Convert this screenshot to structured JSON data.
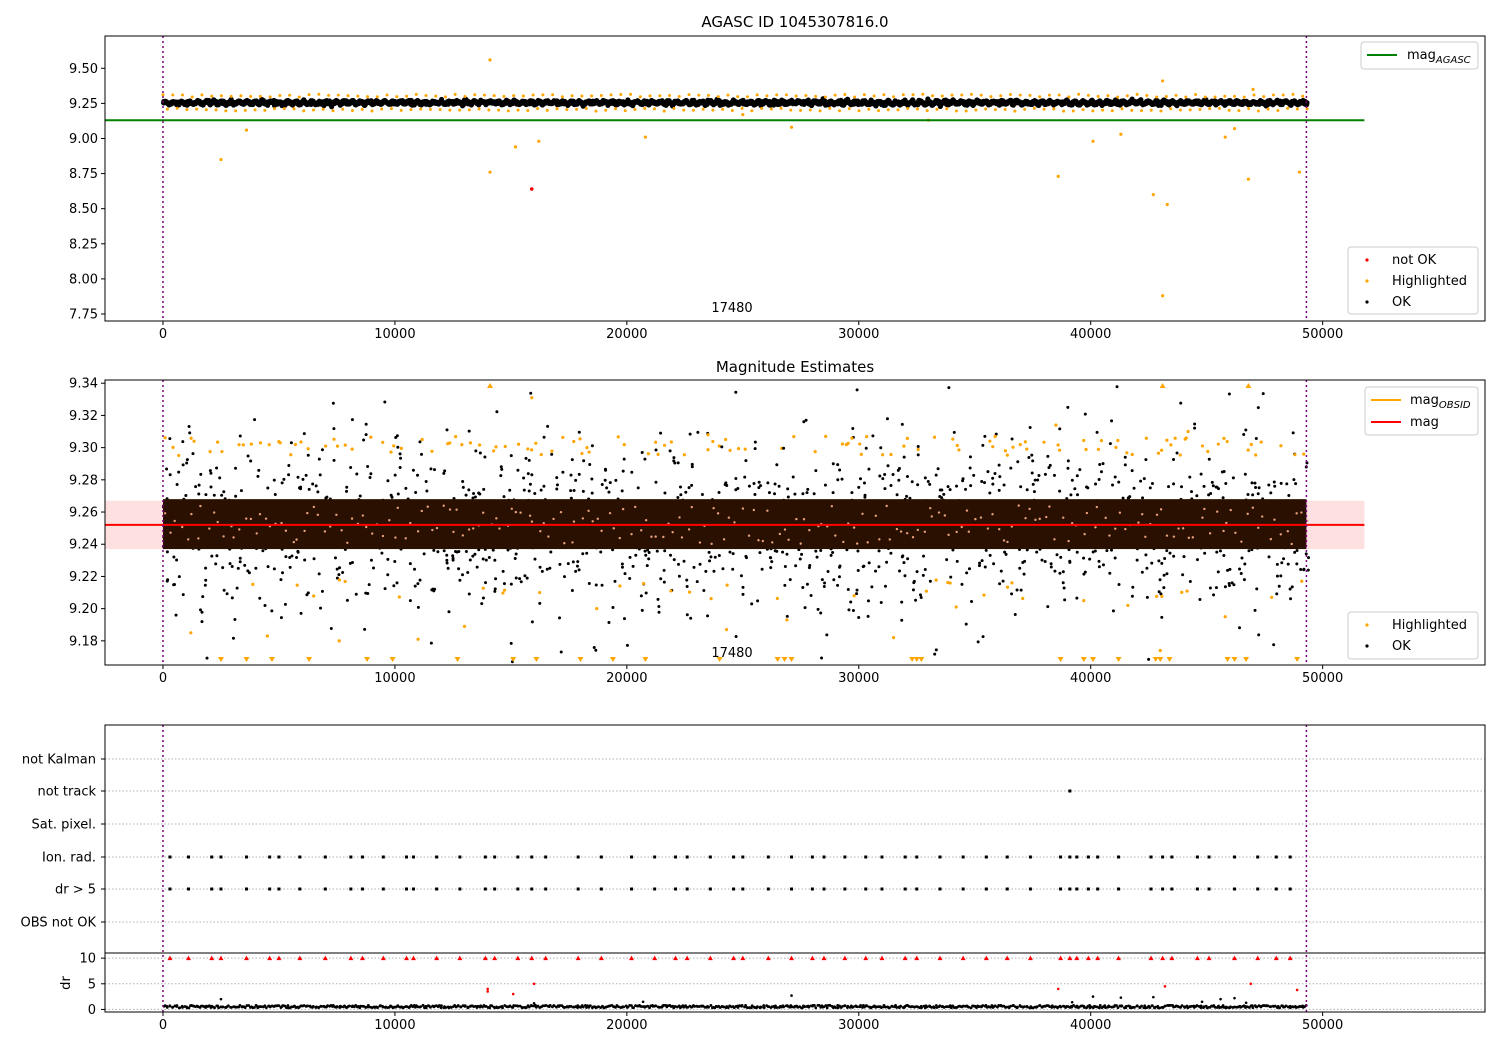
{
  "chart_data": [
    {
      "type": "scatter",
      "title": "AGASC ID 1045307816.0",
      "xlim": [
        -2500,
        57000
      ],
      "ylim": [
        7.7,
        9.73
      ],
      "x_ticks": [
        0,
        10000,
        20000,
        30000,
        40000,
        50000
      ],
      "y_ticks": [
        7.75,
        8.0,
        8.25,
        8.5,
        8.75,
        9.0,
        9.25,
        9.5
      ],
      "y_tick_labels": [
        "7.75",
        "8.00",
        "8.25",
        "8.50",
        "8.75",
        "9.00",
        "9.25",
        "9.50"
      ],
      "annotation": {
        "text": "17480",
        "x": 24500
      },
      "vlines": [
        0,
        49300
      ],
      "mag_agasc": 9.13,
      "mag_agasc_span": [
        -2500,
        51800
      ],
      "ok_band": {
        "center": 9.255,
        "amplitude": 0.014,
        "x_range": [
          0,
          49300
        ]
      },
      "highlighted_points": [
        [
          2500,
          8.85
        ],
        [
          3600,
          9.06
        ],
        [
          14100,
          9.56
        ],
        [
          14100,
          8.76
        ],
        [
          15200,
          8.94
        ],
        [
          16200,
          8.98
        ],
        [
          20800,
          9.01
        ],
        [
          27100,
          9.08
        ],
        [
          38600,
          8.73
        ],
        [
          40100,
          8.98
        ],
        [
          41300,
          9.03
        ],
        [
          42700,
          8.6
        ],
        [
          43100,
          9.41
        ],
        [
          43300,
          8.53
        ],
        [
          43100,
          7.88
        ],
        [
          45800,
          9.01
        ],
        [
          46200,
          9.07
        ],
        [
          46800,
          8.71
        ],
        [
          49000,
          8.76
        ],
        [
          47000,
          9.35
        ],
        [
          33000,
          9.13
        ],
        [
          25000,
          9.17
        ]
      ],
      "not_ok_points": [
        [
          15900,
          8.64
        ]
      ],
      "legend_upper": [
        {
          "label": "mag",
          "subscript": "AGASC",
          "color": "#008000"
        }
      ],
      "legend_lower": [
        {
          "label": "not OK",
          "color": "#ff0000"
        },
        {
          "label": "Highlighted",
          "color": "#ffa500"
        },
        {
          "label": "OK",
          "color": "#000000"
        }
      ]
    },
    {
      "type": "scatter",
      "title": "Magnitude Estimates",
      "xlim": [
        -2500,
        57000
      ],
      "ylim": [
        9.165,
        9.342
      ],
      "x_ticks": [
        0,
        10000,
        20000,
        30000,
        40000,
        50000
      ],
      "y_ticks": [
        9.18,
        9.2,
        9.22,
        9.24,
        9.26,
        9.28,
        9.3,
        9.32,
        9.34
      ],
      "y_tick_labels": [
        "9.18",
        "9.20",
        "9.22",
        "9.24",
        "9.26",
        "9.28",
        "9.30",
        "9.32",
        "9.34"
      ],
      "annotation": {
        "text": "17480",
        "x": 24500
      },
      "vlines": [
        0,
        49300
      ],
      "mag": 9.252,
      "mag_band": [
        9.237,
        9.267
      ],
      "mag_span": [
        -2500,
        51800
      ],
      "core_band": [
        9.237,
        9.268
      ],
      "highlighted_points": [
        [
          1200,
          9.185
        ],
        [
          4500,
          9.183
        ],
        [
          7600,
          9.18
        ],
        [
          11000,
          9.181
        ],
        [
          18700,
          9.2
        ],
        [
          21900,
          9.211
        ],
        [
          24300,
          9.187
        ],
        [
          26900,
          9.193
        ],
        [
          31500,
          9.182
        ],
        [
          34200,
          9.201
        ],
        [
          39700,
          9.205
        ],
        [
          41600,
          9.202
        ],
        [
          43000,
          9.174
        ],
        [
          45800,
          9.195
        ],
        [
          47800,
          9.207
        ],
        [
          15900,
          9.331
        ],
        [
          23500,
          9.308
        ],
        [
          38500,
          9.314
        ],
        [
          44200,
          9.31
        ],
        [
          49100,
          9.217
        ],
        [
          13000,
          9.189
        ],
        [
          29800,
          9.208
        ]
      ],
      "clipped_top": [
        14100,
        43100,
        46800
      ],
      "clipped_bottom": [
        2500,
        3600,
        4700,
        6300,
        8800,
        9900,
        12700,
        15100,
        16100,
        18000,
        19400,
        20800,
        24000,
        26500,
        26800,
        27100,
        32300,
        32500,
        32700,
        38700,
        39700,
        40100,
        41200,
        42800,
        43000,
        43400,
        45900,
        46200,
        46700,
        48900
      ],
      "legend_upper": [
        {
          "label": "mag",
          "subscript": "OBSID",
          "color": "#ffa500"
        },
        {
          "label": "mag",
          "subscript": "",
          "color": "#ff0000"
        }
      ],
      "legend_lower": [
        {
          "label": "Highlighted",
          "color": "#ffa500"
        },
        {
          "label": "OK",
          "color": "#000000"
        }
      ]
    },
    {
      "type": "scatter",
      "xlim": [
        -2500,
        57000
      ],
      "categories": [
        "not Kalman",
        "not track",
        "Sat. pixel.",
        "Ion. rad.",
        "dr > 5",
        "OBS not OK"
      ],
      "not_track_points": [
        39100
      ],
      "flag_x": [
        300,
        1100,
        2100,
        2500,
        3600,
        4600,
        5000,
        5900,
        7000,
        8100,
        8600,
        9500,
        10500,
        10800,
        11800,
        12800,
        13900,
        14300,
        15300,
        15900,
        16500,
        17900,
        18900,
        20200,
        21200,
        22100,
        22600,
        23600,
        24600,
        25000,
        26100,
        27100,
        28000,
        28500,
        29400,
        30300,
        31000,
        32000,
        32500,
        33500,
        34500,
        35500,
        36400,
        37400,
        38700,
        39100,
        39400,
        39900,
        40300,
        41200,
        42600,
        43100,
        43500,
        44600,
        45100,
        46200,
        47200,
        48000,
        48600
      ],
      "dr_ylim": [
        -0.5,
        11
      ],
      "dr_ticks": [
        0,
        5,
        10
      ],
      "dr_label": "dr",
      "dr_outliers": [
        [
          14000,
          4
        ],
        [
          14000,
          3.5
        ],
        [
          15100,
          3
        ],
        [
          16000,
          5
        ],
        [
          38600,
          4
        ],
        [
          43200,
          4.5
        ],
        [
          46900,
          5
        ],
        [
          48900,
          3.8
        ]
      ],
      "dr_black_outliers": [
        [
          2500,
          2
        ],
        [
          20700,
          1.5
        ],
        [
          27100,
          2.7
        ],
        [
          39200,
          1.4
        ],
        [
          40100,
          2.5
        ],
        [
          41300,
          2.3
        ],
        [
          42700,
          2.4
        ],
        [
          44800,
          1.5
        ],
        [
          45600,
          2
        ],
        [
          46200,
          2.2
        ],
        [
          46700,
          1.3
        ],
        [
          16000,
          1.2
        ]
      ],
      "x_ticks": [
        0,
        10000,
        20000,
        30000,
        40000,
        50000
      ],
      "vlines": [
        0,
        49300
      ]
    }
  ]
}
